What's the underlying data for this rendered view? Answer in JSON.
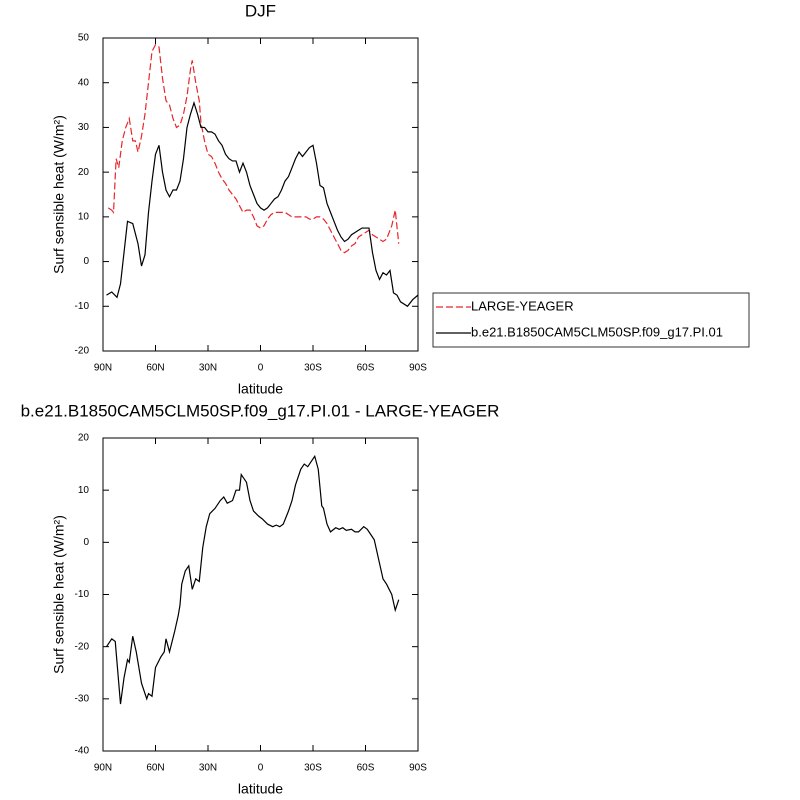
{
  "chart_data": [
    {
      "type": "line",
      "title": "DJF",
      "xlabel": "latitude",
      "ylabel": "Surf sensible heat (W/m²)",
      "xlim": [
        90,
        -90
      ],
      "xticks": [
        {
          "value": 90,
          "label": "90N"
        },
        {
          "value": 60,
          "label": "60N"
        },
        {
          "value": 30,
          "label": "30N"
        },
        0,
        {
          "value": -30,
          "label": "30S"
        },
        {
          "value": -60,
          "label": "60S"
        },
        {
          "value": -90,
          "label": "90S"
        }
      ],
      "ylim": [
        -20,
        50
      ],
      "yticks": [
        -20,
        -10,
        0,
        10,
        20,
        30,
        40,
        50
      ],
      "legend": "outside-right",
      "series": [
        {
          "name": "LARGE-YEAGER",
          "color": "#e8262a",
          "dash": true,
          "x": [
            87,
            85,
            84,
            82.5,
            81,
            79,
            77,
            75,
            73,
            71.5,
            70,
            68,
            66,
            64,
            62,
            60,
            58,
            56,
            54,
            52,
            50,
            48,
            46,
            44,
            42,
            40,
            39,
            37,
            35,
            34,
            32,
            30,
            28,
            26,
            24,
            22,
            20,
            18,
            16,
            14,
            12,
            10,
            8,
            6,
            4,
            2,
            0,
            -2,
            -4,
            -6,
            -8,
            -10,
            -12,
            -14,
            -16,
            -18,
            -20,
            -22,
            -24,
            -26,
            -28,
            -30,
            -32,
            -34,
            -36,
            -38,
            -40,
            -42,
            -44,
            -46,
            -48,
            -50,
            -52,
            -54,
            -56,
            -58,
            -60,
            -62,
            -64,
            -66,
            -68,
            -70,
            -72,
            -75,
            -77,
            -79
          ],
          "values": [
            12,
            11.5,
            11,
            23,
            21,
            27,
            30,
            32,
            27,
            27,
            24.5,
            28,
            33,
            40,
            47,
            48.5,
            48,
            41,
            36,
            35,
            32,
            30,
            30.5,
            33,
            37,
            43,
            45,
            40,
            36,
            31,
            27,
            24,
            23.5,
            22,
            20,
            18.5,
            17.5,
            16,
            15,
            14,
            12.5,
            11,
            11.5,
            11.5,
            10,
            8,
            7.5,
            8,
            9.5,
            10.5,
            11,
            11,
            11,
            11,
            10.5,
            10,
            10,
            10,
            10,
            10,
            9.5,
            9.5,
            10,
            10,
            9.5,
            8.5,
            7,
            5.5,
            4,
            2.5,
            2,
            2.5,
            3.5,
            4,
            5.5,
            6,
            6.5,
            7,
            6,
            5.5,
            5,
            4.5,
            5,
            8,
            11.5,
            4
          ]
        },
        {
          "name": "b.e21.B1850CAM5CLM50SP.f09_g17.PI.01",
          "color": "#000000",
          "dash": false,
          "x": [
            88,
            85,
            82,
            80,
            78,
            76,
            73,
            70,
            68,
            66,
            64,
            62,
            60,
            58,
            56,
            54,
            52,
            50,
            48,
            46,
            44,
            42,
            40,
            38,
            36,
            34,
            32,
            30,
            28,
            26,
            24,
            22,
            20,
            18,
            16,
            14,
            12,
            10,
            8,
            6,
            4,
            2,
            0,
            -2,
            -4,
            -6,
            -8,
            -10,
            -12,
            -14,
            -16,
            -18,
            -20,
            -22,
            -24,
            -26,
            -28,
            -30,
            -32,
            -34,
            -36,
            -38,
            -40,
            -42,
            -44,
            -46,
            -48,
            -50,
            -52,
            -54,
            -56,
            -58,
            -60,
            -62,
            -64,
            -66,
            -68,
            -70,
            -72,
            -74,
            -76,
            -78,
            -80,
            -84,
            -87,
            -90
          ],
          "values": [
            -7.5,
            -6.8,
            -8,
            -5,
            2,
            9,
            8.5,
            4,
            -1,
            1.5,
            11,
            18,
            24,
            26,
            20,
            16,
            14.5,
            16,
            16,
            18,
            23,
            30,
            33,
            35.5,
            33,
            30,
            30,
            29,
            29,
            28.5,
            27,
            26,
            24,
            23,
            22.5,
            22.5,
            20,
            22,
            20,
            17,
            15,
            13,
            12,
            11.5,
            12,
            13,
            14,
            14.5,
            16,
            18,
            19,
            21,
            23,
            24.5,
            23.5,
            24.5,
            25.5,
            26,
            22,
            17,
            16.5,
            13,
            11,
            9,
            7,
            5.5,
            4.5,
            5,
            6,
            6.5,
            7,
            7.5,
            7.5,
            7.5,
            2,
            -2,
            -4,
            -2.5,
            -3,
            -2,
            -7,
            -7.5,
            -9,
            -10,
            -8.5,
            -7.5
          ]
        }
      ]
    },
    {
      "type": "line",
      "title": "b.e21.B1850CAM5CLM50SP.f09_g17.PI.01 - LARGE-YEAGER",
      "xlabel": "latitude",
      "ylabel": "Surf sensible heat (W/m²)",
      "xlim": [
        90,
        -90
      ],
      "xticks": [
        {
          "value": 90,
          "label": "90N"
        },
        {
          "value": 60,
          "label": "60N"
        },
        {
          "value": 30,
          "label": "30N"
        },
        0,
        {
          "value": -30,
          "label": "30S"
        },
        {
          "value": -60,
          "label": "60S"
        },
        {
          "value": -90,
          "label": "90S"
        }
      ],
      "ylim": [
        -40,
        20
      ],
      "yticks": [
        -40,
        -30,
        -20,
        -10,
        0,
        10,
        20
      ],
      "series": [
        {
          "color": "#000000",
          "dash": false,
          "x": [
            88,
            85,
            83,
            80,
            78,
            76,
            75,
            73,
            71,
            68,
            65,
            64,
            62,
            60,
            57,
            55,
            54,
            52,
            49,
            47,
            46,
            45,
            43,
            41,
            39,
            37,
            35,
            33,
            31,
            29,
            26,
            23,
            21,
            19,
            16,
            14,
            12,
            11,
            8,
            6,
            4,
            1,
            -1,
            -4,
            -7,
            -9,
            -11,
            -13,
            -16,
            -18,
            -20,
            -23,
            -25,
            -27,
            -29,
            -31,
            -33,
            -35,
            -36,
            -38,
            -40,
            -43,
            -45,
            -47,
            -49,
            -52,
            -54,
            -56,
            -59,
            -61,
            -63,
            -65,
            -68,
            -70,
            -72,
            -75,
            -77,
            -79
          ],
          "values": [
            -20,
            -18.5,
            -19,
            -31,
            -26,
            -22.5,
            -23,
            -18,
            -21,
            -27,
            -30,
            -29,
            -29.5,
            -24,
            -22,
            -21,
            -18.5,
            -21,
            -17,
            -14,
            -12,
            -8,
            -5.5,
            -4.5,
            -9,
            -7,
            -7.5,
            -1,
            3,
            5.5,
            6.5,
            8,
            8.7,
            7.5,
            8,
            10,
            10,
            13,
            11.5,
            8,
            6,
            5,
            4.5,
            3.5,
            3,
            3.3,
            3,
            3.5,
            6,
            8,
            11,
            14,
            15,
            14.5,
            15.5,
            16.5,
            14,
            7,
            6.5,
            3.5,
            2,
            2.8,
            2.5,
            2.8,
            2.3,
            2.5,
            2,
            2,
            3,
            2.5,
            1.5,
            0.5,
            -4,
            -7,
            -8,
            -10,
            -13,
            -11
          ]
        }
      ]
    }
  ]
}
